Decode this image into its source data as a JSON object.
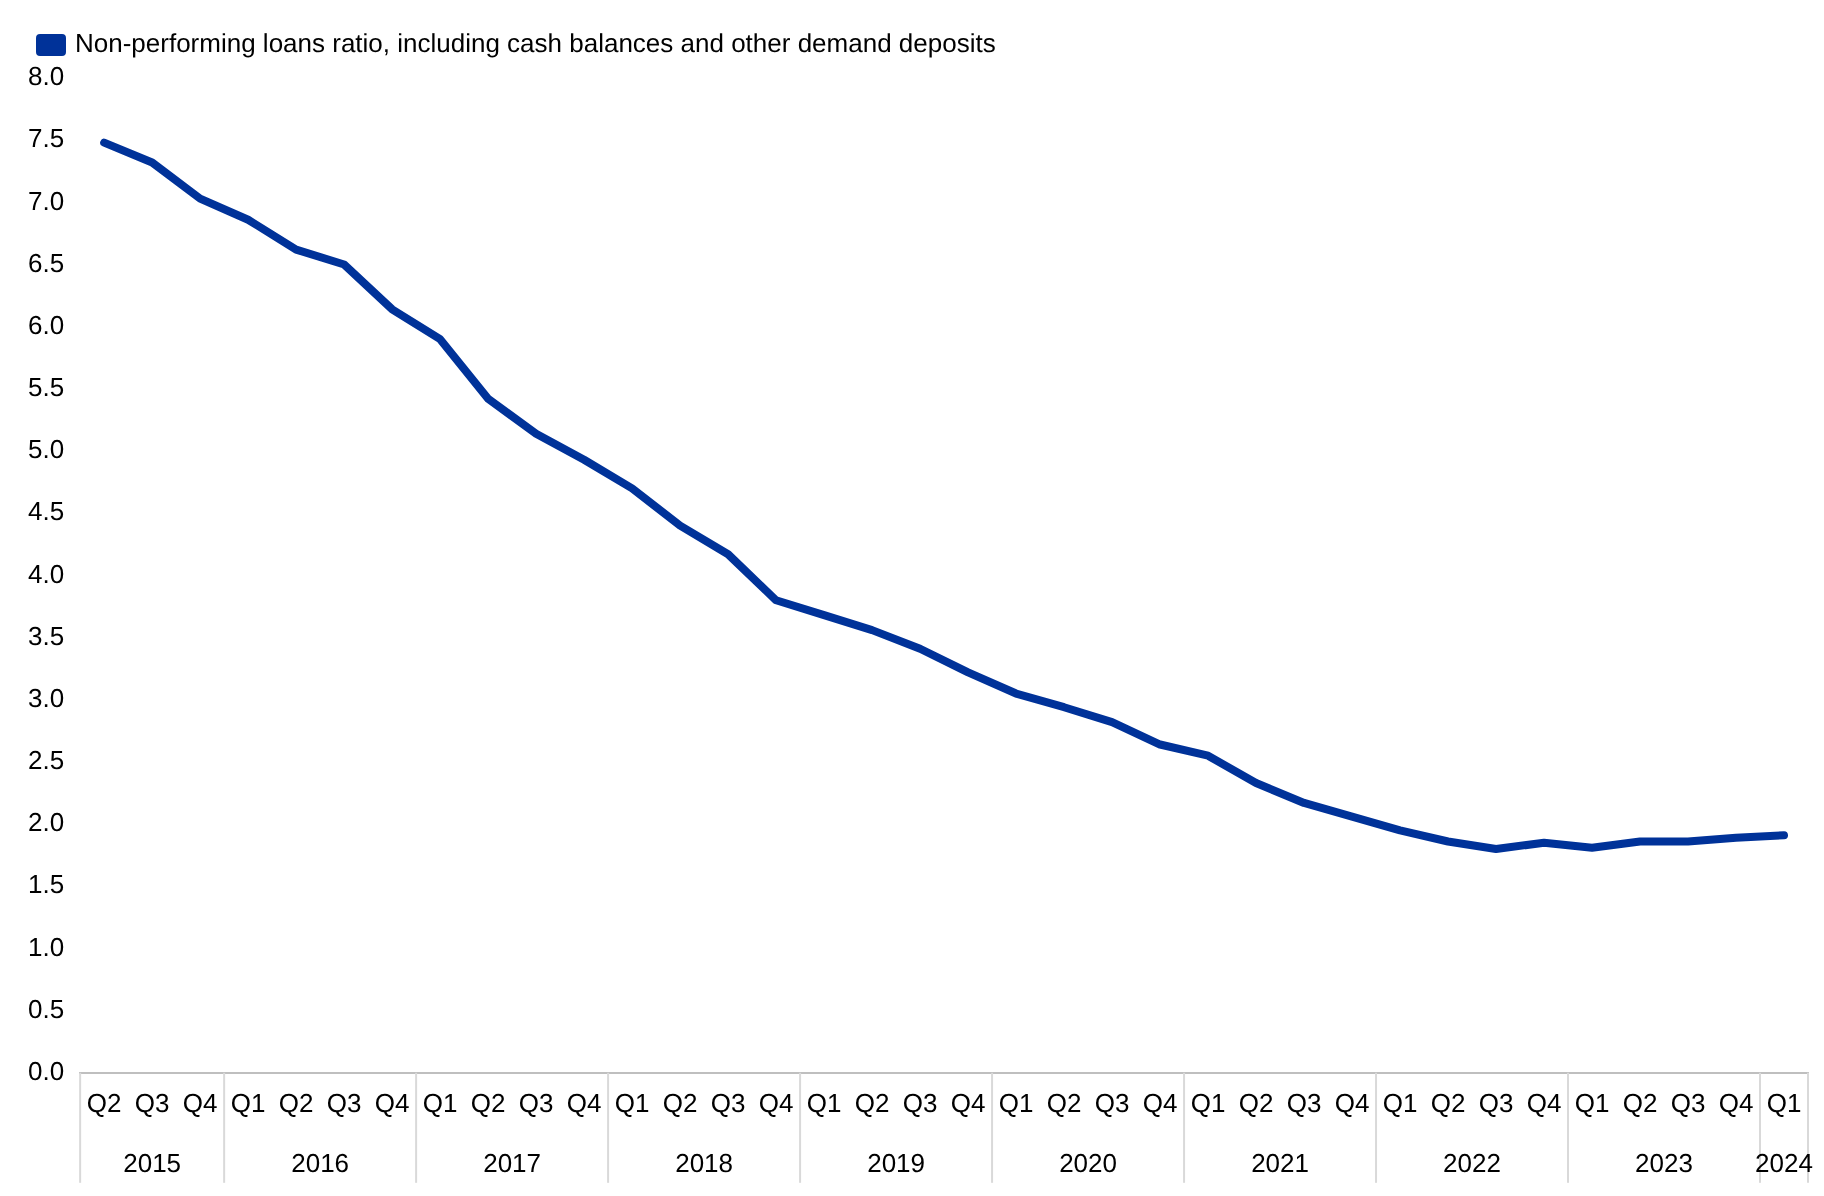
{
  "chart_data": {
    "type": "line",
    "categories": [
      "Q2",
      "Q3",
      "Q4",
      "Q1",
      "Q2",
      "Q3",
      "Q4",
      "Q1",
      "Q2",
      "Q3",
      "Q4",
      "Q1",
      "Q2",
      "Q3",
      "Q4",
      "Q1",
      "Q2",
      "Q3",
      "Q4",
      "Q1",
      "Q2",
      "Q3",
      "Q4",
      "Q1",
      "Q2",
      "Q3",
      "Q4",
      "Q1",
      "Q2",
      "Q3",
      "Q4",
      "Q1",
      "Q2",
      "Q3",
      "Q4",
      "Q1"
    ],
    "series": [
      {
        "name": "Non-performing loans ratio, including cash balances and other demand deposits",
        "color": "#003299",
        "values": [
          7.48,
          7.32,
          7.03,
          6.86,
          6.62,
          6.5,
          6.14,
          5.9,
          5.42,
          5.14,
          4.93,
          4.7,
          4.4,
          4.17,
          3.8,
          3.68,
          3.56,
          3.41,
          3.22,
          3.05,
          2.94,
          2.82,
          2.64,
          2.55,
          2.33,
          2.17,
          2.06,
          1.95,
          1.86,
          1.8,
          1.85,
          1.81,
          1.86,
          1.86,
          1.89,
          1.91
        ]
      }
    ],
    "ylim": [
      0,
      8
    ],
    "yticks": [
      {
        "value": 0,
        "label": "0.0"
      },
      {
        "value": 0.5,
        "label": "0.5"
      },
      {
        "value": 1,
        "label": "1.0"
      },
      {
        "value": 1.5,
        "label": "1.5"
      },
      {
        "value": 2,
        "label": "2.0"
      },
      {
        "value": 2.5,
        "label": "2.5"
      },
      {
        "value": 3,
        "label": "3.0"
      },
      {
        "value": 3.5,
        "label": "3.5"
      },
      {
        "value": 4,
        "label": "4.0"
      },
      {
        "value": 4.5,
        "label": "4.5"
      },
      {
        "value": 5,
        "label": "5.0"
      },
      {
        "value": 5.5,
        "label": "5.5"
      },
      {
        "value": 6,
        "label": "6.0"
      },
      {
        "value": 6.5,
        "label": "6.5"
      },
      {
        "value": 7,
        "label": "7.0"
      },
      {
        "value": 7.5,
        "label": "7.5"
      },
      {
        "value": 8,
        "label": "8.0"
      }
    ],
    "annotations": [
      "2015",
      "2016",
      "2017",
      "2018",
      "2019",
      "2020",
      "2021",
      "2022",
      "2023",
      "2024"
    ],
    "grid": false,
    "legend": "top left",
    "marker": "none",
    "line_style": "solid"
  }
}
